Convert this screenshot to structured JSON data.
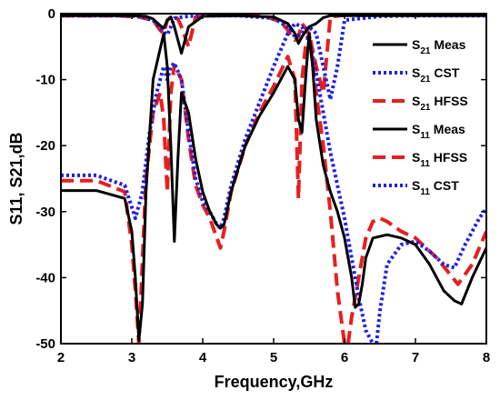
{
  "chart_data": {
    "type": "line",
    "xlabel": "Frequency,GHz",
    "ylabel": "S11, S21,dB",
    "xlim": [
      2,
      8
    ],
    "ylim": [
      -50,
      0
    ],
    "xticks": [
      2,
      3,
      4,
      5,
      6,
      7,
      8
    ],
    "yticks": [
      0,
      -10,
      -20,
      -30,
      -40,
      -50
    ],
    "xtick_labels": [
      "2",
      "3",
      "4",
      "5",
      "6",
      "7",
      "8"
    ],
    "ytick_labels": [
      "0",
      "-10",
      "-20",
      "-30",
      "-40",
      "-50"
    ],
    "grid": false,
    "legend_position": "top-right",
    "legend": [
      {
        "main": "S",
        "sub": "21",
        "tail": " Meas",
        "color": "#000000",
        "style": "solid"
      },
      {
        "main": "S",
        "sub": "21",
        "tail": " CST",
        "color": "#1f1fe6",
        "style": "dotted"
      },
      {
        "main": "S",
        "sub": "21",
        "tail": " HFSS",
        "color": "#e61f1f",
        "style": "dashed"
      },
      {
        "main": "S",
        "sub": "11",
        "tail": " Meas",
        "color": "#000000",
        "style": "solid"
      },
      {
        "main": "S",
        "sub": "11",
        "tail": " HFSS",
        "color": "#e61f1f",
        "style": "dashed"
      },
      {
        "main": "S",
        "sub": "11",
        "tail": " CST",
        "color": "#1f1fe6",
        "style": "dotted"
      }
    ],
    "series": [
      {
        "color": "#e61f1f",
        "style": "dashed",
        "x": [
          2,
          2.5,
          2.9,
          3.0,
          3.05,
          3.1,
          3.2,
          3.3,
          3.4,
          3.45,
          3.5,
          3.55,
          3.6,
          3.7,
          3.8,
          3.9,
          4.0,
          4.1,
          4.2,
          4.25,
          4.3,
          4.4,
          4.6,
          4.8,
          5.0,
          5.2,
          5.3,
          5.35,
          5.4,
          5.45,
          5.5,
          5.6,
          5.7,
          5.8,
          5.9,
          5.95,
          6.0
        ],
        "y": [
          -25.3,
          -25.3,
          -27,
          -35,
          -42,
          -50,
          -25,
          -15,
          -12,
          -16,
          -27,
          -12,
          -7.8,
          -10,
          -19,
          -26,
          -29,
          -31,
          -34,
          -35.5,
          -33,
          -27,
          -20,
          -15,
          -11,
          -6.5,
          -10,
          -28,
          -10,
          -5,
          -3,
          -12,
          -20,
          -30,
          -42,
          -46,
          -50
        ]
      },
      {
        "color": "#e61f1f",
        "style": "dashed",
        "x": [
          6.05,
          6.1,
          6.2,
          6.3,
          6.4,
          6.5,
          6.6,
          6.8,
          7.0,
          7.3,
          7.6,
          7.8,
          8.0
        ],
        "y": [
          -50,
          -46,
          -40,
          -34,
          -31.5,
          -31,
          -31.5,
          -33,
          -34,
          -37,
          -41,
          -38,
          -33
        ]
      },
      {
        "color": "#e61f1f",
        "style": "dashed",
        "x": [
          2,
          2.8,
          3.1,
          3.3,
          3.4,
          3.45,
          3.5,
          3.55,
          3.6,
          3.65,
          3.7,
          3.8,
          3.9,
          4.1,
          4.3,
          4.5,
          4.7,
          4.9,
          5.1,
          5.2,
          5.25,
          5.3,
          5.35,
          5.4,
          5.5,
          5.6,
          5.7,
          5.8,
          6.0,
          6.5,
          7.0,
          8.0
        ],
        "y": [
          -0.3,
          -0.3,
          -0.5,
          -1,
          -2.5,
          -3,
          -1,
          -0.5,
          -0.4,
          -0.8,
          -2,
          -5,
          -0.5,
          -0.2,
          -0.2,
          -0.2,
          -0.3,
          -0.5,
          -1.2,
          -2.5,
          -3.5,
          -4,
          -3.5,
          -1.5,
          -3,
          -8,
          -12,
          -0.5,
          -0.2,
          -0.2,
          -0.2,
          -0.2
        ]
      },
      {
        "color": "#1f1fe6",
        "style": "dotted",
        "x": [
          2,
          2.5,
          2.9,
          3.05,
          3.15,
          3.25,
          3.35,
          3.45,
          3.5,
          3.55,
          3.6,
          3.7,
          3.8,
          3.9,
          4.0,
          4.1,
          4.2,
          4.25,
          4.3,
          4.4,
          4.6,
          4.8,
          5.0,
          5.2,
          5.3,
          5.4,
          5.5,
          5.6,
          5.7,
          5.8,
          5.9,
          6.0,
          6.1,
          6.2,
          6.3,
          6.4
        ],
        "y": [
          -24.5,
          -24.5,
          -26,
          -31,
          -27,
          -18,
          -12,
          -8,
          -10,
          -8,
          -7.5,
          -10,
          -18,
          -25,
          -28.5,
          -30,
          -32,
          -32.5,
          -31,
          -26,
          -19,
          -13.5,
          -8,
          -3,
          -1.5,
          -2,
          -4,
          -9,
          -15,
          -21,
          -26,
          -31,
          -37,
          -43,
          -48,
          -50
        ]
      },
      {
        "color": "#1f1fe6",
        "style": "dotted",
        "x": [
          6.45,
          6.5,
          6.6,
          6.8,
          7.0,
          7.2,
          7.4,
          7.55,
          7.7,
          7.9,
          8.0
        ],
        "y": [
          -50,
          -45,
          -38,
          -35,
          -34.5,
          -36,
          -38,
          -38.5,
          -35,
          -31,
          -29.5
        ]
      },
      {
        "color": "#1f1fe6",
        "style": "dotted",
        "x": [
          2,
          2.8,
          3.1,
          3.3,
          3.45,
          3.5,
          3.55,
          3.6,
          3.65,
          3.8,
          4.0,
          4.5,
          5.0,
          5.2,
          5.3,
          5.4,
          5.5,
          5.6,
          5.7,
          5.8,
          5.9,
          6.0,
          6.5,
          7.0,
          8.0
        ],
        "y": [
          -0.3,
          -0.3,
          -0.4,
          -1,
          -2.8,
          -3.2,
          -2,
          -0.7,
          -0.6,
          -0.4,
          -0.3,
          -0.3,
          -0.7,
          -2,
          -3.5,
          -3,
          -2,
          -3,
          -8,
          -13,
          -8,
          -1,
          -0.4,
          -0.3,
          -0.3
        ]
      },
      {
        "color": "#000000",
        "style": "solid",
        "x": [
          2,
          2.5,
          2.9,
          3.0,
          3.05,
          3.1,
          3.15,
          3.2,
          3.3,
          3.45,
          3.5,
          3.55,
          3.6,
          3.65,
          3.7,
          3.8,
          3.9,
          4.0,
          4.1,
          4.2,
          4.25,
          4.3,
          4.4,
          4.6,
          4.8,
          5.0,
          5.2,
          5.3,
          5.35,
          5.4,
          5.45,
          5.5,
          5.55,
          5.6,
          5.7,
          5.8,
          5.9,
          6.0,
          6.1,
          6.15,
          6.2,
          6.25,
          6.3,
          6.4,
          6.6,
          6.8,
          7.0,
          7.2,
          7.4,
          7.55,
          7.65,
          7.8,
          8.0
        ],
        "y": [
          -26.8,
          -26.8,
          -28,
          -33,
          -40,
          -49.5,
          -44,
          -27,
          -10,
          -3,
          -8,
          -20,
          -34.5,
          -22,
          -12,
          -15,
          -22,
          -27,
          -30,
          -32,
          -32.5,
          -32,
          -27,
          -20,
          -15.5,
          -12,
          -8,
          -10,
          -16,
          -18,
          -10,
          -3,
          -8,
          -16,
          -23,
          -27,
          -30,
          -34,
          -40,
          -44.5,
          -44,
          -41,
          -37,
          -34,
          -33.5,
          -34,
          -35,
          -38,
          -42,
          -43.5,
          -44,
          -40,
          -35.5
        ]
      },
      {
        "color": "#000000",
        "style": "solid",
        "x": [
          2,
          3.0,
          3.2,
          3.3,
          3.4,
          3.45,
          3.5,
          3.55,
          3.6,
          3.7,
          3.8,
          4.0,
          4.5,
          5.0,
          5.2,
          5.3,
          5.35,
          5.4,
          5.5,
          5.6,
          5.7,
          5.8,
          6.0,
          6.5,
          7.0,
          8.0
        ],
        "y": [
          -0.3,
          -0.3,
          -0.4,
          -0.8,
          -1.8,
          -2.2,
          -1,
          -0.5,
          -2,
          -6,
          -2,
          -0.4,
          -0.3,
          -0.5,
          -1.5,
          -3,
          -4.5,
          -3.5,
          -2,
          -1.5,
          -0.6,
          -0.3,
          -0.3,
          -0.3,
          -0.3,
          -0.3
        ]
      }
    ]
  }
}
